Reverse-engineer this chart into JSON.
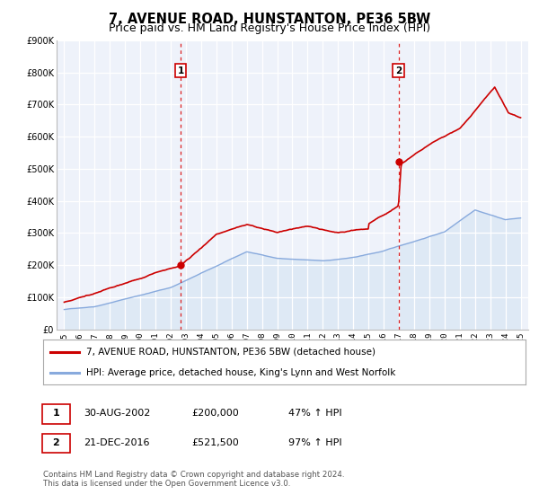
{
  "title": "7, AVENUE ROAD, HUNSTANTON, PE36 5BW",
  "subtitle": "Price paid vs. HM Land Registry's House Price Index (HPI)",
  "ylim": [
    0,
    900000
  ],
  "yticks": [
    0,
    100000,
    200000,
    300000,
    400000,
    500000,
    600000,
    700000,
    800000,
    900000
  ],
  "ytick_labels": [
    "£0",
    "£100K",
    "£200K",
    "£300K",
    "£400K",
    "£500K",
    "£600K",
    "£700K",
    "£800K",
    "£900K"
  ],
  "xlim_start": 1994.5,
  "xlim_end": 2025.5,
  "xticks": [
    1995,
    1996,
    1997,
    1998,
    1999,
    2000,
    2001,
    2002,
    2003,
    2004,
    2005,
    2006,
    2007,
    2008,
    2009,
    2010,
    2011,
    2012,
    2013,
    2014,
    2015,
    2016,
    2017,
    2018,
    2019,
    2020,
    2021,
    2022,
    2023,
    2024,
    2025
  ],
  "transaction1_x": 2002.66,
  "transaction1_y": 200000,
  "transaction1_label": "1",
  "transaction1_date": "30-AUG-2002",
  "transaction1_price": "£200,000",
  "transaction1_hpi": "47% ↑ HPI",
  "transaction2_x": 2016.97,
  "transaction2_y": 521500,
  "transaction2_label": "2",
  "transaction2_date": "21-DEC-2016",
  "transaction2_price": "£521,500",
  "transaction2_hpi": "97% ↑ HPI",
  "line1_color": "#cc0000",
  "line2_color": "#88aadd",
  "line2_fill_color": "#dce8f5",
  "background_color": "#eef2fa",
  "grid_color": "#ffffff",
  "title_fontsize": 10.5,
  "subtitle_fontsize": 9,
  "legend1_label": "7, AVENUE ROAD, HUNSTANTON, PE36 5BW (detached house)",
  "legend2_label": "HPI: Average price, detached house, King's Lynn and West Norfolk",
  "footnote": "Contains HM Land Registry data © Crown copyright and database right 2024.\nThis data is licensed under the Open Government Licence v3.0."
}
